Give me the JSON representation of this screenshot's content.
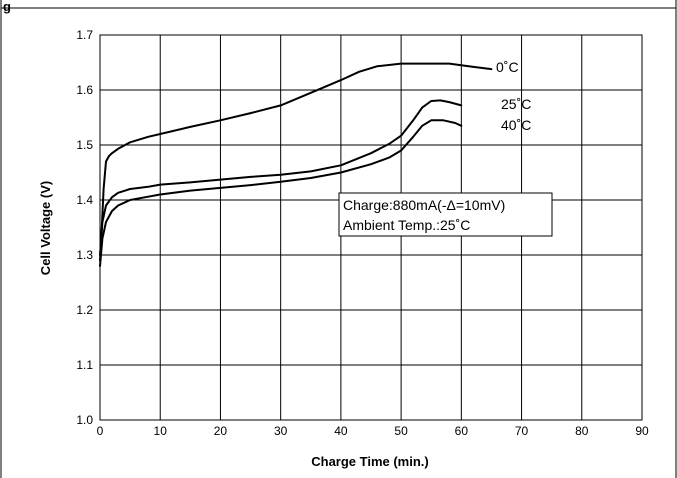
{
  "header_text": "g",
  "chart_data": {
    "type": "line",
    "title": "",
    "xlabel": "Charge Time  (min.)",
    "ylabel": "Cell Voltage (V)",
    "xlim": [
      0,
      90
    ],
    "ylim": [
      1.0,
      1.7
    ],
    "xticks": [
      "0",
      "10",
      "20",
      "30",
      "40",
      "50",
      "60",
      "70",
      "80",
      "90"
    ],
    "yticks": [
      "1.0",
      "1.1",
      "1.2",
      "1.3",
      "1.4",
      "1.5",
      "1.6",
      "1.7"
    ],
    "grid": true,
    "series": [
      {
        "name": "0˚C",
        "x": [
          0,
          0.3,
          0.6,
          1,
          1.5,
          2,
          3,
          5,
          8,
          10,
          15,
          20,
          25,
          30,
          35,
          40,
          43,
          46,
          50,
          55,
          58,
          60,
          62,
          65
        ],
        "y": [
          1.29,
          1.35,
          1.42,
          1.47,
          1.48,
          1.485,
          1.493,
          1.505,
          1.515,
          1.52,
          1.533,
          1.545,
          1.558,
          1.572,
          1.595,
          1.618,
          1.633,
          1.643,
          1.648,
          1.648,
          1.648,
          1.645,
          1.642,
          1.638
        ]
      },
      {
        "name": "25˚C",
        "x": [
          0,
          0.4,
          1,
          2,
          3,
          5,
          8,
          10,
          15,
          20,
          25,
          30,
          35,
          40,
          45,
          48,
          50,
          52,
          53.5,
          55,
          56.5,
          58,
          60
        ],
        "y": [
          1.3,
          1.36,
          1.39,
          1.405,
          1.413,
          1.42,
          1.424,
          1.428,
          1.432,
          1.437,
          1.442,
          1.446,
          1.452,
          1.463,
          1.485,
          1.502,
          1.517,
          1.545,
          1.568,
          1.58,
          1.581,
          1.578,
          1.572
        ]
      },
      {
        "name": "40˚C",
        "x": [
          0,
          0.4,
          1,
          2,
          3,
          5,
          8,
          10,
          15,
          20,
          25,
          30,
          35,
          40,
          45,
          48,
          50,
          52,
          53.5,
          55,
          57,
          59,
          60
        ],
        "y": [
          1.28,
          1.33,
          1.36,
          1.38,
          1.39,
          1.4,
          1.406,
          1.41,
          1.417,
          1.422,
          1.427,
          1.433,
          1.44,
          1.45,
          1.465,
          1.477,
          1.49,
          1.515,
          1.535,
          1.545,
          1.545,
          1.54,
          1.535
        ]
      }
    ],
    "annotation": {
      "line1": "Charge:880mA(-Δ=10mV)",
      "line2": "Ambient Temp.:25˚C"
    }
  }
}
